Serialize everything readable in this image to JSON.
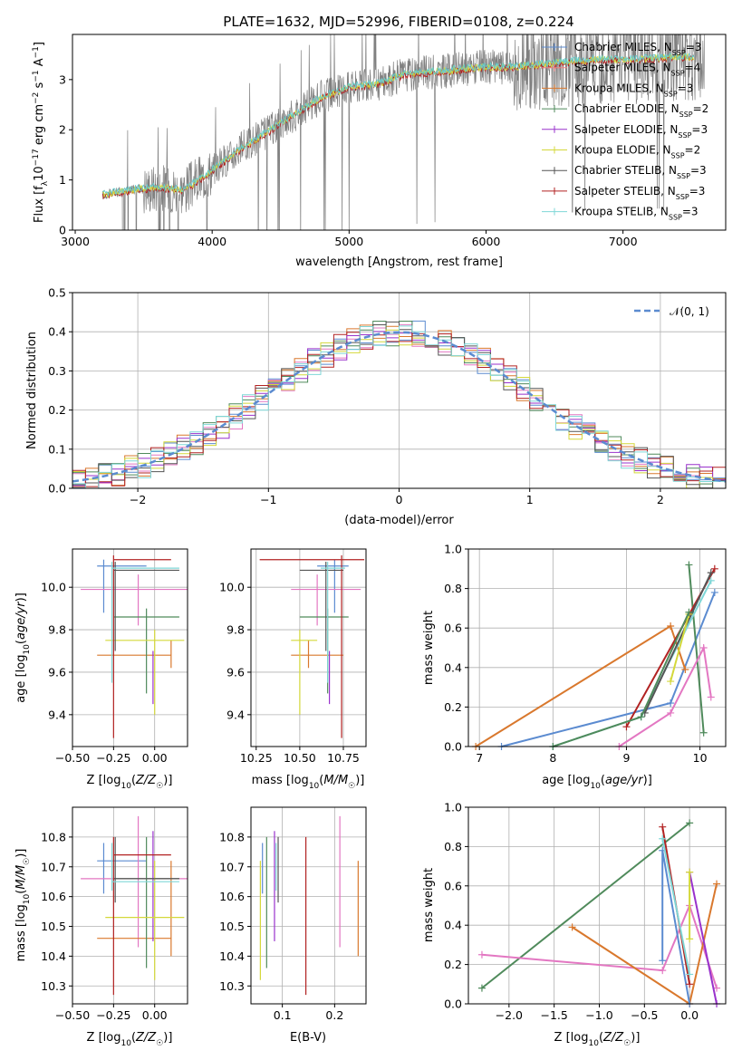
{
  "colors": {
    "chabrier_miles": "#5b8bd0",
    "salpeter_miles": "#f08080",
    "kroupa_miles": "#d9782d",
    "chabrier_elodie": "#4f8a5b",
    "salpeter_elodie": "#9932cc",
    "kroupa_elodie": "#d4d83a",
    "chabrier_stelib": "#555555",
    "salpeter_stelib": "#b22222",
    "kroupa_stelib": "#7fd7d7",
    "kroupa_stelib_fit": "#66cccc",
    "normal": "#5b8bd0",
    "pink": "#e377c2",
    "grey_spectrum": "#808080"
  },
  "chart_data": [
    {
      "id": "spectrum",
      "type": "line",
      "title": "PLATE=1632, MJD=52996, FIBERID=0108, z=0.224",
      "xlabel": "wavelength [Angstrom, rest frame]",
      "ylabel": "Flux [f_λ10^-17 erg cm^-2 s^-1 A^-1]",
      "xlim": [
        2980,
        7750
      ],
      "ylim": [
        0,
        3.9
      ],
      "xticks": [
        "3000",
        "4000",
        "5000",
        "6000",
        "7000"
      ],
      "yticks": [
        "0",
        "1",
        "2",
        "3"
      ],
      "data_x_range": [
        3200,
        7600
      ],
      "data_continuum_x": [
        3200,
        3400,
        3600,
        3800,
        4000,
        4200,
        4400,
        4600,
        4800,
        5000,
        5200,
        5400,
        5600,
        5800,
        6000,
        6200,
        6400,
        6600,
        6800,
        7000,
        7200,
        7400,
        7550
      ],
      "data_continuum_y": [
        0.7,
        0.8,
        0.85,
        0.8,
        1.2,
        1.6,
        1.95,
        2.3,
        2.65,
        2.85,
        2.9,
        3.1,
        3.15,
        3.2,
        3.25,
        3.25,
        3.3,
        3.35,
        3.4,
        3.4,
        3.42,
        3.45,
        3.45
      ],
      "legend_position": "right",
      "legend": [
        "Chabrier MILES, N_SSP=3",
        "Salpeter MILES, N_SSP=4",
        "Kroupa MILES, N_SSP=3",
        "Chabrier ELODIE, N_SSP=2",
        "Salpeter ELODIE, N_SSP=3",
        "Kroupa ELODIE, N_SSP=2",
        "Chabrier STELIB, N_SSP=3",
        "Salpeter STELIB, N_SSP=3",
        "Kroupa STELIB, N_SSP=3"
      ]
    },
    {
      "id": "residuals",
      "type": "line",
      "xlabel": "(data-model)/error",
      "ylabel": "Normed distribution",
      "xlim": [
        -2.5,
        2.5
      ],
      "ylim": [
        0,
        0.5
      ],
      "xticks": [
        "−2",
        "−1",
        "0",
        "1",
        "2"
      ],
      "yticks": [
        "0.0",
        "0.1",
        "0.2",
        "0.3",
        "0.4",
        "0.5"
      ],
      "legend": [
        "𝒩(0, 1)"
      ],
      "legend_position": "top-right",
      "grid": true
    },
    {
      "id": "age_vs_Z",
      "type": "scatter",
      "xlabel": "Z [log10(Z/Z☉)]",
      "ylabel": "age  [log10(age/yr)]",
      "xlim": [
        -0.5,
        0.2
      ],
      "ylim": [
        9.25,
        10.18
      ],
      "xticks": [
        "−0.50",
        "−0.25",
        "0.00"
      ],
      "yticks": [
        "9.4",
        "9.6",
        "9.8",
        "10.0"
      ],
      "grid": true
    },
    {
      "id": "age_vs_mass",
      "type": "scatter",
      "xlabel": "mass [log10(M/M☉)]",
      "xlim": [
        10.22,
        10.88
      ],
      "ylim": [
        9.25,
        10.18
      ],
      "xticks": [
        "10.25",
        "10.50",
        "10.75"
      ],
      "yticks": [
        "9.4",
        "9.6",
        "9.8",
        "10.0"
      ],
      "grid": true
    },
    {
      "id": "weight_vs_age",
      "type": "line",
      "xlabel": "age  [log10(age/yr)]",
      "ylabel": "mass weight",
      "xlim": [
        6.85,
        10.35
      ],
      "ylim": [
        0,
        1
      ],
      "xticks": [
        "7",
        "8",
        "9",
        "10"
      ],
      "yticks": [
        "0.0",
        "0.2",
        "0.4",
        "0.6",
        "0.8",
        "1.0"
      ],
      "grid": true
    },
    {
      "id": "mass_vs_Z",
      "type": "scatter",
      "xlabel": "Z [log10(Z/Z☉)]",
      "ylabel": "mass [log10(M/M☉)]",
      "xlim": [
        -0.5,
        0.2
      ],
      "ylim": [
        10.24,
        10.9
      ],
      "xticks": [
        "−0.50",
        "−0.25",
        "0.00"
      ],
      "yticks": [
        "10.3",
        "10.4",
        "10.5",
        "10.6",
        "10.7",
        "10.8"
      ],
      "grid": true
    },
    {
      "id": "mass_vs_ebv",
      "type": "scatter",
      "xlabel": "E(B-V)",
      "xlim": [
        0.04,
        0.26
      ],
      "ylim": [
        10.24,
        10.9
      ],
      "xticks": [
        "0.1",
        "0.2"
      ],
      "yticks": [
        "10.3",
        "10.4",
        "10.5",
        "10.6",
        "10.7",
        "10.8"
      ],
      "grid": true
    },
    {
      "id": "weight_vs_Z",
      "type": "line",
      "xlabel": "Z [log10(Z/Z☉)]",
      "ylabel": "mass weight",
      "xlim": [
        -2.45,
        0.4
      ],
      "ylim": [
        0,
        1
      ],
      "xticks": [
        "−2.0",
        "−1.5",
        "−1.0",
        "−0.5",
        "0.0"
      ],
      "yticks": [
        "0.0",
        "0.2",
        "0.4",
        "0.6",
        "0.8",
        "1.0"
      ],
      "grid": true
    }
  ]
}
